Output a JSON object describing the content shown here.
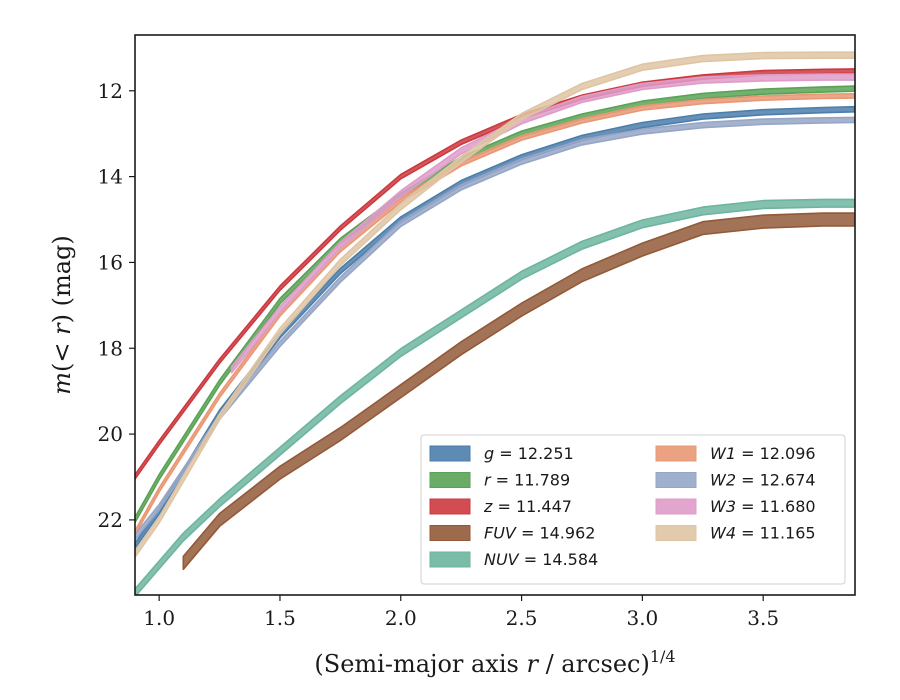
{
  "chart_data": {
    "type": "line",
    "xlabel_main": "(Semi-major axis ",
    "xlabel_var": "r",
    "xlabel_tail": " / arcsec)",
    "xlabel_sup": "1/4",
    "ylabel_italic": "m",
    "ylabel_mid": "(< ",
    "ylabel_var": "r",
    "ylabel_tail": ") (mag)",
    "xlim": [
      0.9,
      3.88
    ],
    "ylim": [
      23.75,
      10.7
    ],
    "x_ticks": [
      "1.0",
      "1.5",
      "2.0",
      "2.5",
      "3.0",
      "3.5"
    ],
    "x_tick_values": [
      1.0,
      1.5,
      2.0,
      2.5,
      3.0,
      3.5
    ],
    "y_ticks": [
      "12",
      "14",
      "16",
      "18",
      "20",
      "22"
    ],
    "y_tick_values": [
      12,
      14,
      16,
      18,
      20,
      22
    ],
    "legend_placement": "lower-right",
    "series": [
      {
        "name": "g = 12.251",
        "var": "g",
        "value": "12.251",
        "color": "#4c7eab",
        "width": 0.12,
        "x": [
          0.9,
          1.0,
          1.25,
          1.5,
          1.75,
          2.0,
          2.25,
          2.5,
          2.75,
          3.0,
          3.25,
          3.5,
          3.75,
          3.88
        ],
        "y": [
          22.6,
          21.8,
          19.5,
          17.7,
          16.2,
          15.0,
          14.15,
          13.55,
          13.1,
          12.8,
          12.6,
          12.5,
          12.45,
          12.43
        ]
      },
      {
        "name": "r = 11.789",
        "var": "r",
        "value": "11.789",
        "color": "#5aa356",
        "width": 0.12,
        "x": [
          0.9,
          1.0,
          1.25,
          1.5,
          1.75,
          2.0,
          2.25,
          2.5,
          2.75,
          3.0,
          3.25,
          3.5,
          3.75,
          3.88
        ],
        "y": [
          22.0,
          21.0,
          18.8,
          16.9,
          15.5,
          14.45,
          13.6,
          13.0,
          12.6,
          12.3,
          12.12,
          12.02,
          11.97,
          11.95
        ]
      },
      {
        "name": "z = 11.447",
        "var": "z",
        "value": "11.447",
        "color": "#cc3a40",
        "width": 0.1,
        "x": [
          0.9,
          1.0,
          1.25,
          1.5,
          1.75,
          2.0,
          2.25,
          2.5,
          2.75,
          3.0,
          3.25,
          3.5,
          3.75,
          3.88
        ],
        "y": [
          21.0,
          20.2,
          18.3,
          16.6,
          15.2,
          14.0,
          13.2,
          12.6,
          12.15,
          11.85,
          11.68,
          11.58,
          11.55,
          11.54
        ]
      },
      {
        "name": "FUV = 14.962",
        "var": "FUV",
        "value": "14.962",
        "color": "#925a38",
        "width": 0.3,
        "x": [
          1.1,
          1.25,
          1.5,
          1.75,
          2.0,
          2.25,
          2.5,
          2.75,
          3.0,
          3.25,
          3.5,
          3.75,
          3.88
        ],
        "y": [
          23.0,
          22.0,
          20.9,
          20.0,
          19.0,
          18.0,
          17.1,
          16.3,
          15.7,
          15.2,
          15.05,
          15.0,
          15.0
        ]
      },
      {
        "name": "NUV = 14.584",
        "var": "NUV",
        "value": "14.584",
        "color": "#6db5a0",
        "width": 0.18,
        "x": [
          0.9,
          1.1,
          1.25,
          1.5,
          1.75,
          2.0,
          2.25,
          2.5,
          2.75,
          3.0,
          3.25,
          3.5,
          3.75,
          3.88
        ],
        "y": [
          23.7,
          22.4,
          21.6,
          20.4,
          19.2,
          18.1,
          17.2,
          16.3,
          15.6,
          15.1,
          14.8,
          14.65,
          14.62,
          14.62
        ]
      },
      {
        "name": "W1 = 12.096",
        "var": "W1",
        "value": "12.096",
        "color": "#e99876",
        "width": 0.1,
        "x": [
          0.9,
          1.0,
          1.25,
          1.5,
          1.75,
          2.0,
          2.25,
          2.5,
          2.75,
          3.0,
          3.25,
          3.5,
          3.75,
          3.88
        ],
        "y": [
          22.3,
          21.3,
          19.1,
          17.2,
          15.7,
          14.55,
          13.7,
          13.1,
          12.7,
          12.4,
          12.25,
          12.17,
          12.13,
          12.12
        ]
      },
      {
        "name": "W2 = 12.674",
        "var": "W2",
        "value": "12.674",
        "color": "#96a6c6",
        "width": 0.12,
        "x": [
          0.9,
          1.0,
          1.25,
          1.5,
          1.75,
          2.0,
          2.25,
          2.5,
          2.75,
          3.0,
          3.25,
          3.5,
          3.75,
          3.88
        ],
        "y": [
          22.4,
          21.7,
          19.6,
          17.9,
          16.4,
          15.1,
          14.25,
          13.65,
          13.2,
          12.95,
          12.8,
          12.72,
          12.69,
          12.68
        ]
      },
      {
        "name": "W3 = 11.680",
        "var": "W3",
        "value": "11.680",
        "color": "#df9cc9",
        "width": 0.14,
        "x": [
          1.3,
          1.5,
          1.75,
          2.0,
          2.25,
          2.5,
          2.75,
          3.0,
          3.25,
          3.5,
          3.75,
          3.88
        ],
        "y": [
          18.5,
          17.1,
          15.6,
          14.4,
          13.4,
          12.7,
          12.2,
          11.9,
          11.75,
          11.7,
          11.68,
          11.68
        ]
      },
      {
        "name": "W4 = 11.165",
        "var": "W4",
        "value": "11.165",
        "color": "#dfc5a4",
        "width": 0.14,
        "x": [
          0.9,
          1.0,
          1.25,
          1.5,
          1.75,
          2.0,
          2.25,
          2.5,
          2.75,
          3.0,
          3.25,
          3.5,
          3.75,
          3.88
        ],
        "y": [
          22.8,
          22.0,
          19.6,
          17.6,
          16.0,
          14.7,
          13.6,
          12.6,
          11.9,
          11.45,
          11.25,
          11.18,
          11.17,
          11.17
        ]
      }
    ]
  }
}
